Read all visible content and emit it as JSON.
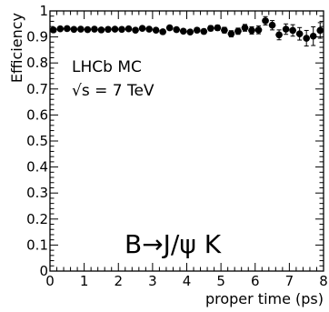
{
  "chart_data": {
    "type": "scatter",
    "xlabel": "proper time (ps)",
    "ylabel": "Efficiency",
    "xlim": [
      0,
      8
    ],
    "ylim": [
      0,
      1
    ],
    "x_ticks": [
      "0",
      "1",
      "2",
      "3",
      "4",
      "5",
      "6",
      "7",
      "8"
    ],
    "y_ticks": [
      "0",
      "0.1",
      "0.2",
      "0.3",
      "0.4",
      "0.5",
      "0.6",
      "0.7",
      "0.8",
      "0.9",
      "1"
    ],
    "annotations": [
      "LHCb MC",
      "√s = 7 TeV",
      "B→J/ψ K"
    ],
    "grid": false,
    "marker_color": "#000000",
    "series": [
      {
        "x": [
          0.1,
          0.3,
          0.5,
          0.7,
          0.9,
          1.1,
          1.3,
          1.5,
          1.7,
          1.9,
          2.1,
          2.3,
          2.5,
          2.7,
          2.9,
          3.1,
          3.3,
          3.5,
          3.7,
          3.9,
          4.1,
          4.3,
          4.5,
          4.7,
          4.9,
          5.1,
          5.3,
          5.5,
          5.7,
          5.9,
          6.1,
          6.3,
          6.5,
          6.7,
          6.9,
          7.1,
          7.3,
          7.5,
          7.7,
          7.9
        ],
        "y": [
          0.927,
          0.931,
          0.932,
          0.929,
          0.93,
          0.928,
          0.93,
          0.927,
          0.929,
          0.93,
          0.929,
          0.931,
          0.926,
          0.933,
          0.93,
          0.926,
          0.92,
          0.935,
          0.928,
          0.922,
          0.919,
          0.926,
          0.921,
          0.933,
          0.935,
          0.926,
          0.912,
          0.922,
          0.935,
          0.925,
          0.927,
          0.962,
          0.945,
          0.908,
          0.93,
          0.925,
          0.912,
          0.895,
          0.903,
          0.925
        ],
        "y_err": [
          0.003,
          0.003,
          0.003,
          0.003,
          0.003,
          0.003,
          0.004,
          0.004,
          0.004,
          0.004,
          0.004,
          0.005,
          0.005,
          0.005,
          0.006,
          0.006,
          0.006,
          0.007,
          0.007,
          0.008,
          0.008,
          0.009,
          0.009,
          0.01,
          0.01,
          0.011,
          0.012,
          0.012,
          0.013,
          0.014,
          0.015,
          0.016,
          0.018,
          0.019,
          0.02,
          0.022,
          0.024,
          0.03,
          0.036,
          0.03
        ]
      }
    ]
  }
}
